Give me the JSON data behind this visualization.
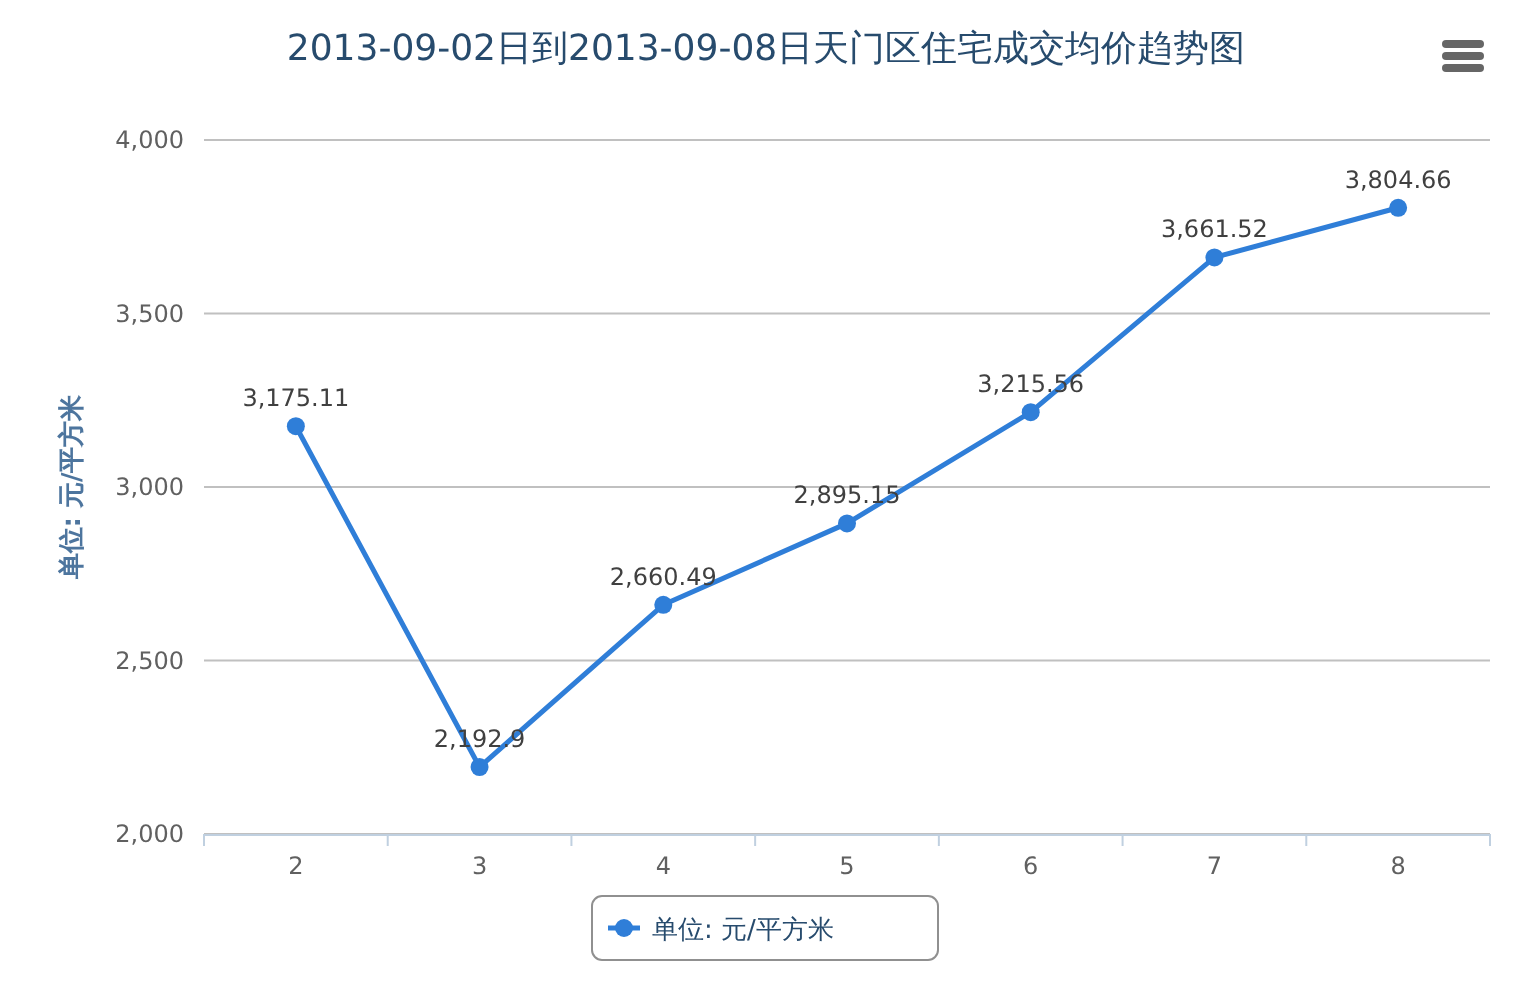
{
  "chart_data": {
    "type": "line",
    "title": "2013-09-02日到2013-09-08日天门区住宅成交均价趋势图",
    "ylabel": "单位: 元/平方米",
    "categories": [
      "2",
      "3",
      "4",
      "5",
      "6",
      "7",
      "8"
    ],
    "series": [
      {
        "name": "单位: 元/平方米",
        "color": "#2f7ed8",
        "values": [
          3175.11,
          2192.9,
          2660.49,
          2895.15,
          3215.56,
          3661.52,
          3804.66
        ],
        "value_labels": [
          "3,175.11",
          "2,192.9",
          "2,660.49",
          "2,895.15",
          "3,215.56",
          "3,661.52",
          "3,804.66"
        ]
      }
    ],
    "ylim": [
      2000,
      4000
    ],
    "yticks": [
      {
        "value": 2000,
        "label": "2,000"
      },
      {
        "value": 2500,
        "label": "2,500"
      },
      {
        "value": 3000,
        "label": "3,000"
      },
      {
        "value": 3500,
        "label": "3,500"
      },
      {
        "value": 4000,
        "label": "4,000"
      }
    ],
    "grid": "y",
    "legend": "bottom",
    "marker": "circle",
    "line_style": "solid"
  }
}
